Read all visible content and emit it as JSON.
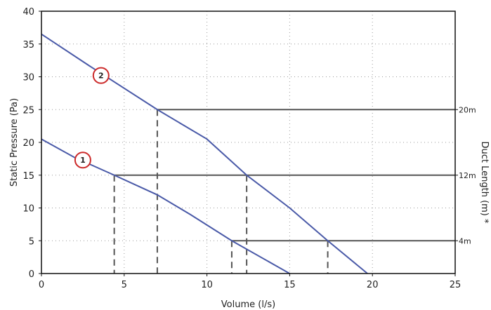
{
  "chart_data": {
    "type": "line",
    "xlabel": "Volume (l/s)",
    "ylabel": "Static Pressure (Pa)",
    "y2label": "Duct Length (m) *",
    "xlim": [
      0,
      25
    ],
    "ylim": [
      0,
      40
    ],
    "xticks": [
      0,
      5,
      10,
      15,
      20,
      25
    ],
    "yticks": [
      0,
      5,
      10,
      15,
      20,
      25,
      30,
      35,
      40
    ],
    "grid": true,
    "grid_style": "dotted",
    "line_color": "#4a5aa8",
    "marker_color": "#cc2a2a",
    "series": [
      {
        "id": "1",
        "marker": "1",
        "marker_at": [
          2.5,
          17.3
        ],
        "x": [
          0,
          2,
          4.4,
          7,
          9,
          11.5,
          15
        ],
        "y": [
          20.5,
          17.7,
          15,
          12,
          9,
          5,
          0
        ]
      },
      {
        "id": "2",
        "marker": "2",
        "marker_at": [
          3.6,
          30.2
        ],
        "x": [
          0,
          3,
          7,
          10,
          12.4,
          15,
          17.3,
          19.7
        ],
        "y": [
          36.5,
          31.5,
          25,
          20.5,
          15,
          10,
          5,
          0
        ]
      }
    ],
    "duct_lengths": [
      {
        "label": "20m",
        "y": 25,
        "x_start": 7
      },
      {
        "label": "12m",
        "y": 15,
        "x_start": 4.4
      },
      {
        "label": "4m",
        "y": 5,
        "x_start": 11.5
      }
    ],
    "drop_lines": [
      {
        "x": 4.4,
        "y": 15
      },
      {
        "x": 7,
        "y": 25
      },
      {
        "x": 11.5,
        "y": 5
      },
      {
        "x": 12.4,
        "y": 15
      },
      {
        "x": 17.3,
        "y": 5
      }
    ]
  }
}
